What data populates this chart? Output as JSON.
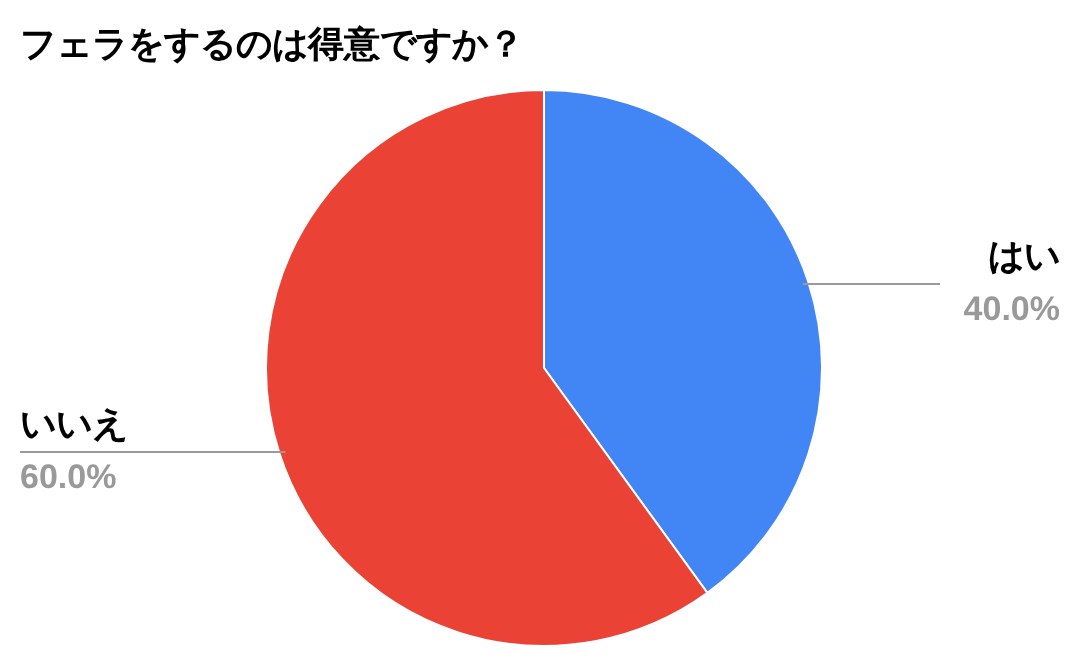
{
  "chart_data": {
    "type": "pie",
    "title": "フェラをするのは得意ですか？",
    "categories": [
      "はい",
      "いいえ"
    ],
    "values": [
      40,
      60
    ],
    "colors": [
      "#4285f4",
      "#ea4335"
    ],
    "value_labels": [
      "40.0%",
      "60.0%"
    ]
  }
}
